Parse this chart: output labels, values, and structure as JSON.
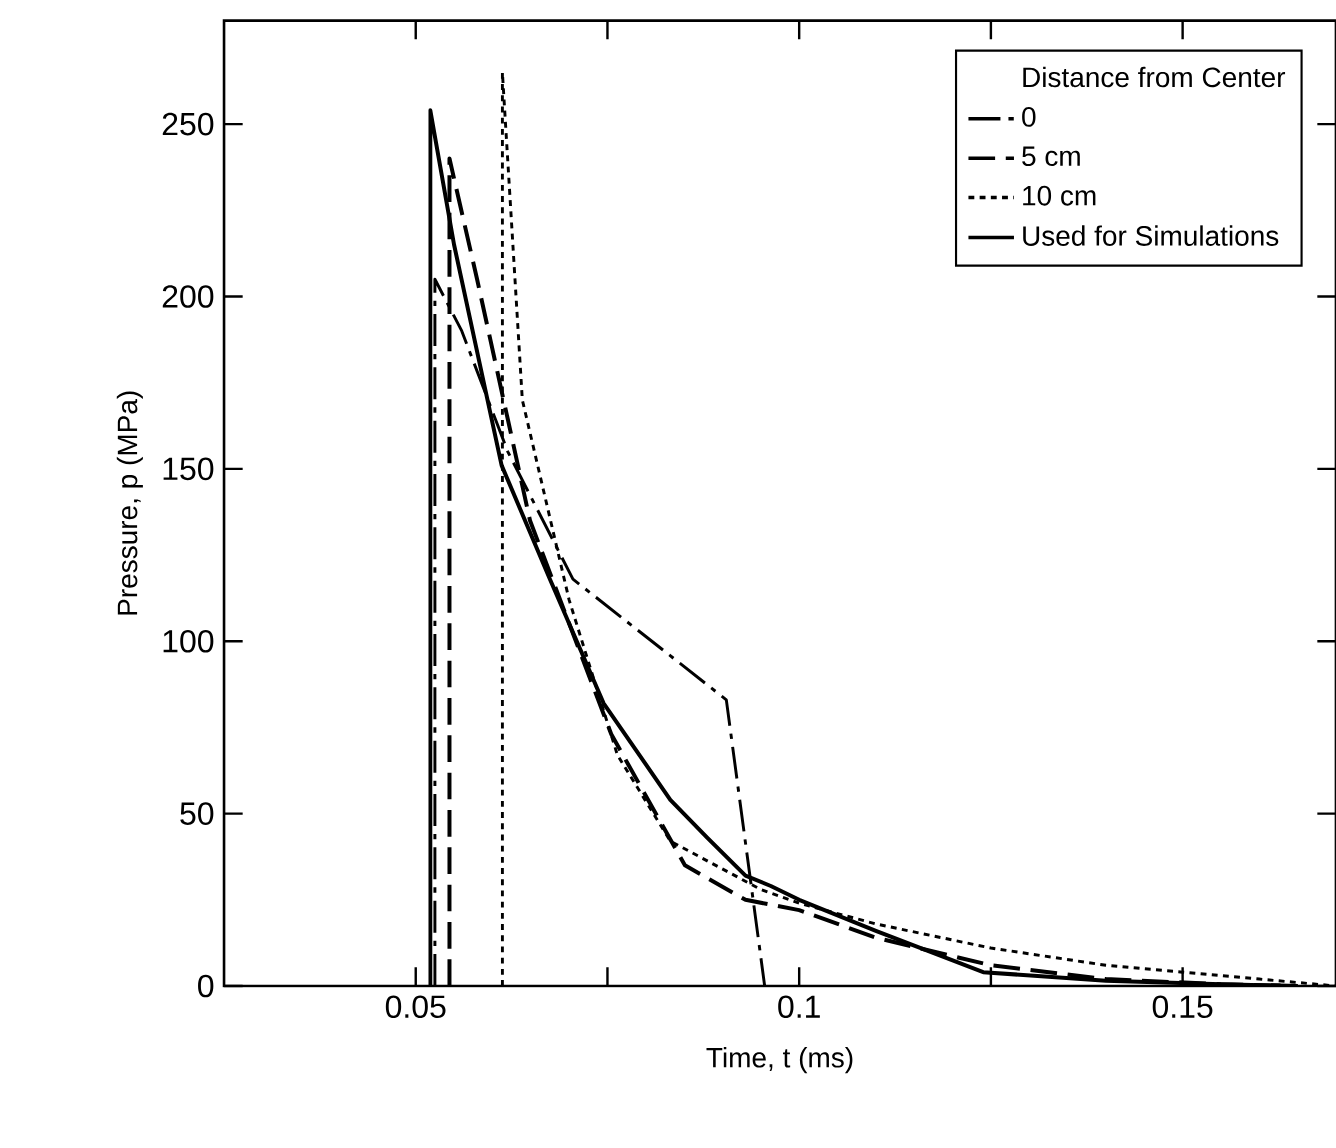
{
  "chart_data": {
    "type": "line",
    "xlabel": "Time, t (ms)",
    "ylabel": "Pressure, p (MPa)",
    "legend_title": "Distance from Center",
    "xlim": [
      0.025,
      0.17
    ],
    "ylim": [
      0,
      280
    ],
    "xticks": [
      0.05,
      {
        "value": 0.075,
        "label": null
      },
      0.1,
      {
        "value": 0.125,
        "label": null
      },
      0.15
    ],
    "yticks": [
      0,
      50,
      100,
      150,
      200,
      250
    ],
    "grid": false,
    "legend": "top right",
    "marker": "none",
    "series": [
      {
        "name": "0",
        "color": "#000000",
        "line_style": "dashdot",
        "x": [
          0.0525,
          0.0525,
          0.056,
          0.062,
          0.0705,
          0.0905,
          0.0955
        ],
        "values": [
          0,
          205,
          190,
          155,
          118,
          83,
          0
        ]
      },
      {
        "name": "5 cm",
        "color": "#000000",
        "line_style": "dashed",
        "x": [
          0.0544,
          0.0544,
          0.058,
          0.0649,
          0.0755,
          0.0851,
          0.093,
          0.1,
          0.11,
          0.125,
          0.14,
          0.155,
          0.165
        ],
        "values": [
          0,
          240,
          205,
          135,
          73,
          35,
          25,
          22,
          14,
          6,
          2,
          0.5,
          0
        ]
      },
      {
        "name": "10 cm",
        "color": "#000000",
        "line_style": "dotted",
        "x": [
          0.0613,
          0.0613,
          0.0639,
          0.07,
          0.0763,
          0.0832,
          0.095,
          0.1,
          0.11,
          0.125,
          0.14,
          0.15,
          0.16,
          0.17
        ],
        "values": [
          0,
          265,
          170,
          112,
          67,
          42,
          28,
          24,
          18,
          11,
          6,
          4,
          2,
          0
        ]
      },
      {
        "name": "Used for Simulations",
        "color": "#000000",
        "line_style": "solid",
        "x": [
          0.0519,
          0.0519,
          0.055,
          0.0612,
          0.0675,
          0.0745,
          0.0832,
          0.088,
          0.093,
          0.0963,
          0.1,
          0.11,
          0.124,
          0.14,
          0.155,
          0.165
        ],
        "values": [
          0,
          254,
          215,
          151,
          118,
          82,
          54,
          43,
          32,
          29,
          25,
          16,
          4,
          1.5,
          0.5,
          0
        ]
      }
    ]
  }
}
